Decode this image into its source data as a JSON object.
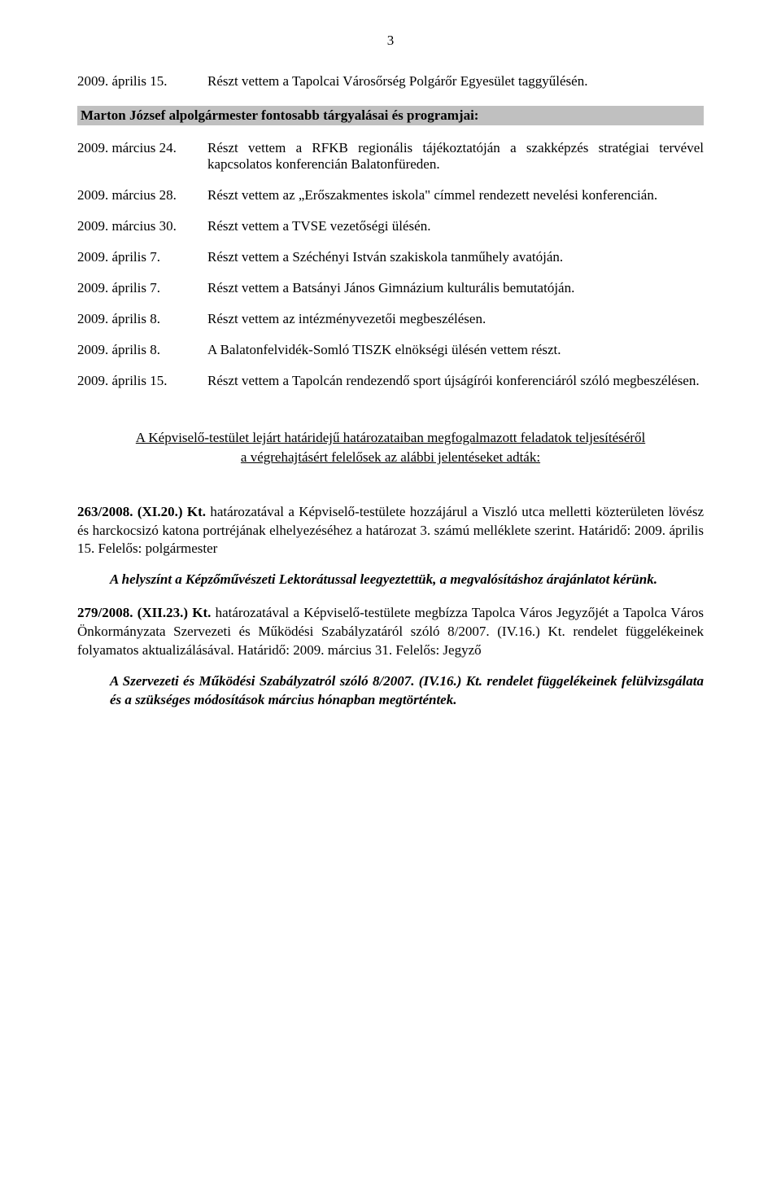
{
  "page_number": "3",
  "top_entry": {
    "date": "2009. április 15.",
    "text": "Részt vettem a Tapolcai Városőrség Polgárőr Egyesület taggyűlésén."
  },
  "section_header": "Marton József alpolgármester fontosabb tárgyalásai és programjai:",
  "entries": [
    {
      "date": "2009. március 24.",
      "text": "Részt vettem a RFKB regionális tájékoztatóján a szakképzés stratégiai tervével kapcsolatos konferencián Balatonfüreden."
    },
    {
      "date": "2009. március 28.",
      "text": "Részt vettem az „Erőszakmentes iskola\" címmel rendezett nevelési konferencián."
    },
    {
      "date": "2009. március 30.",
      "text": "Részt vettem a TVSE vezetőségi ülésén."
    },
    {
      "date": "2009. április 7.",
      "text": "Részt vettem a Széchényi István szakiskola tanműhely avatóján."
    },
    {
      "date": "2009. április 7.",
      "text": "Részt vettem a Batsányi János Gimnázium kulturális bemutatóján."
    },
    {
      "date": "2009. április 8.",
      "text": "Részt vettem az intézményvezetői megbeszélésen."
    },
    {
      "date": "2009. április 8.",
      "text": "A Balatonfelvidék-Somló TISZK elnökségi ülésén vettem részt."
    },
    {
      "date": "2009. április 15.",
      "text": "Részt vettem a Tapolcán rendezendő sport újságírói konferenciáról szóló megbeszélésen."
    }
  ],
  "report_heading_line1": "A Képviselő-testület lejárt határidejű határozataiban megfogalmazott feladatok teljesítéséről",
  "report_heading_line2": "a végrehajtásért felelősek az alábbi jelentéseket adták:",
  "para1_bold": "263/2008. (XI.20.) Kt.",
  "para1_rest": " határozatával a Képviselő-testülete hozzájárul a Viszló utca melletti közterületen lövész és harckocsizó katona portréjának elhelyezéséhez a határozat 3. számú melléklete szerint. Határidő: 2009. április 15. Felelős: polgármester",
  "note1": "A helyszínt a Képzőművészeti Lektorátussal leegyeztettük, a megvalósításhoz árajánlatot kérünk.",
  "para2_bold": "279/2008. (XII.23.) Kt.",
  "para2_rest": " határozatával a Képviselő-testülete megbízza Tapolca Város Jegyzőjét a Tapolca Város Önkormányzata Szervezeti és Működési Szabályzatáról szóló 8/2007. (IV.16.) Kt. rendelet függelékeinek folyamatos aktualizálásával. Határidő: 2009. március 31. Felelős: Jegyző",
  "note2": "A Szervezeti és Működési Szabályzatról szóló 8/2007. (IV.16.) Kt. rendelet függelékeinek felülvizsgálata és a szükséges módosítások március hónapban megtörténtek."
}
